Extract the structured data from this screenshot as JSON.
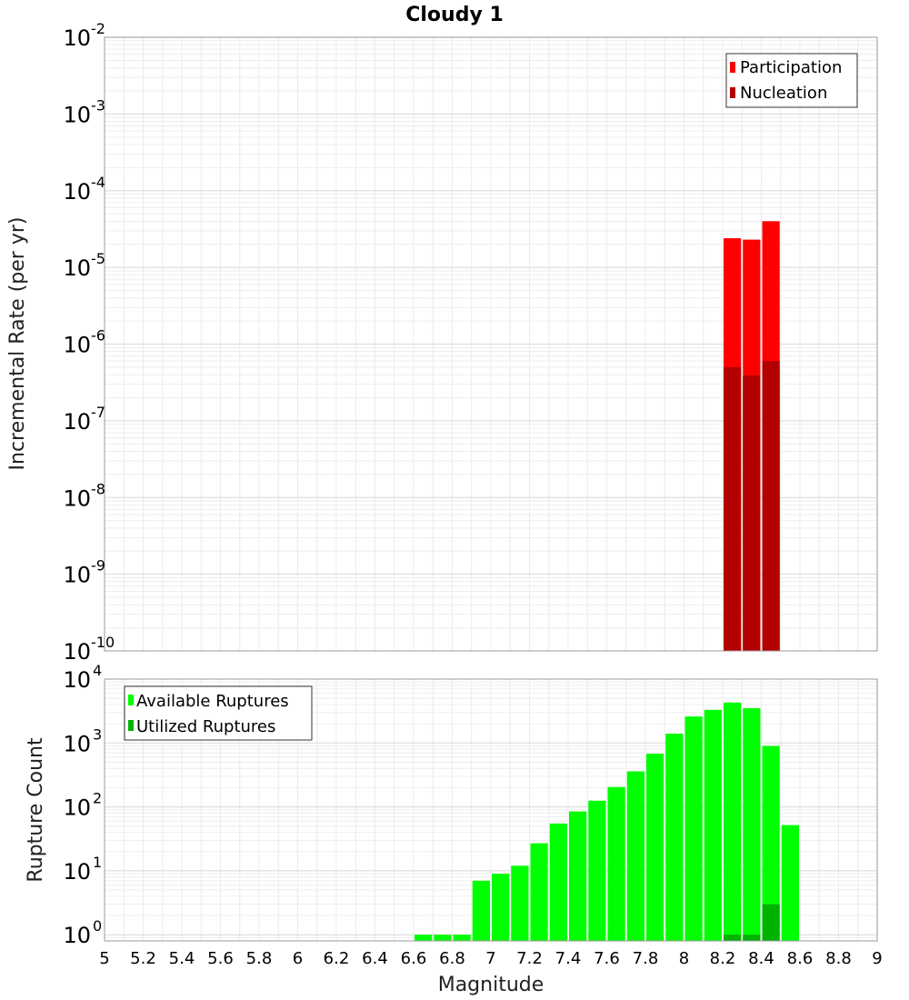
{
  "chart_data": [
    {
      "type": "bar",
      "title": "Cloudy 1",
      "ylabel": "Incremental Rate (per yr)",
      "xlabel": "",
      "yscale": "log",
      "ylim_exponents": [
        -10,
        -2
      ],
      "xlim": [
        5,
        9
      ],
      "bar_width": 0.1,
      "legend": {
        "location": "top-right",
        "entries": [
          "Participation",
          "Nucleation"
        ]
      },
      "colors": {
        "Participation": "#ff0000",
        "Nucleation": "#b30000"
      },
      "series": [
        {
          "name": "Participation",
          "x": [
            8.25,
            8.35,
            8.45
          ],
          "values": [
            2.4e-05,
            2.3e-05,
            4e-05
          ]
        },
        {
          "name": "Nucleation",
          "x": [
            8.25,
            8.35,
            8.45
          ],
          "values": [
            5e-07,
            3.9e-07,
            6e-07
          ]
        }
      ],
      "ytick_exponents": [
        "-10",
        "-9",
        "-8",
        "-7",
        "-6",
        "-5",
        "-4",
        "-3",
        "-2"
      ]
    },
    {
      "type": "bar",
      "ylabel": "Rupture Count",
      "xlabel": "Magnitude",
      "yscale": "log",
      "ylim": [
        0.8,
        10000
      ],
      "xlim": [
        5,
        9
      ],
      "bar_width": 0.1,
      "legend": {
        "location": "top-left",
        "entries": [
          "Available Ruptures",
          "Utilized Ruptures"
        ]
      },
      "colors": {
        "Available Ruptures": "#00ff00",
        "Utilized Ruptures": "#00b300"
      },
      "series": [
        {
          "name": "Available Ruptures",
          "x": [
            6.65,
            6.75,
            6.85,
            6.95,
            7.05,
            7.15,
            7.25,
            7.35,
            7.45,
            7.55,
            7.65,
            7.75,
            7.85,
            7.95,
            8.05,
            8.15,
            8.25,
            8.35,
            8.45,
            8.55
          ],
          "values": [
            1,
            1,
            1,
            7,
            9,
            12,
            27,
            55,
            85,
            125,
            205,
            360,
            680,
            1400,
            2600,
            3300,
            4300,
            3500,
            900,
            52
          ]
        },
        {
          "name": "Utilized Ruptures",
          "x": [
            8.25,
            8.35,
            8.45
          ],
          "values": [
            1,
            1,
            3
          ]
        }
      ],
      "ytick_exponents": [
        "0",
        "1",
        "2",
        "3",
        "4"
      ],
      "xticks": [
        "5",
        "5.2",
        "5.4",
        "5.6",
        "5.8",
        "6",
        "6.2",
        "6.4",
        "6.6",
        "6.8",
        "7",
        "7.2",
        "7.4",
        "7.6",
        "7.8",
        "8",
        "8.2",
        "8.4",
        "8.6",
        "8.8",
        "9"
      ]
    }
  ]
}
